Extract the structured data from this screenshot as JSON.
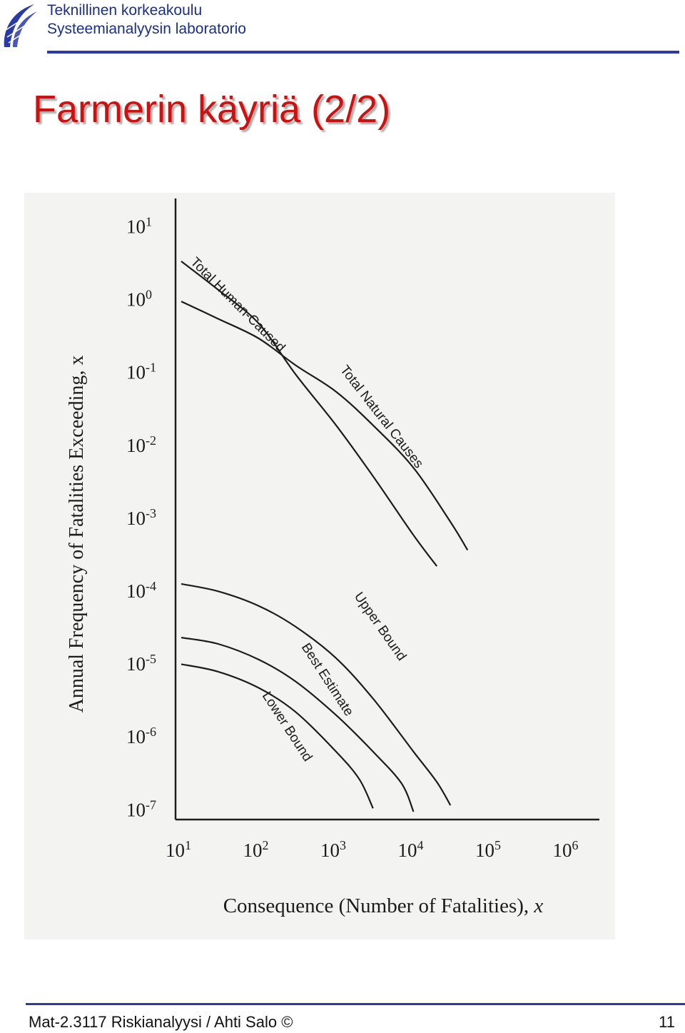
{
  "header": {
    "institution_line1": "Teknillinen korkeakoulu",
    "institution_line2": "Systeemianalyysin laboratorio"
  },
  "slide": {
    "title": "Farmerin käyriä (2/2)"
  },
  "footer": {
    "course": "Mat-2.3117 Riskianalyysi / Ahti Salo ©",
    "page_number": "11"
  },
  "chart_data": {
    "type": "line",
    "xlabel": "Consequence (Number of Fatalities), x",
    "ylabel": "Annual Frequency of Fatalities Exceeding, x",
    "x_scale": "log",
    "y_scale": "log",
    "xlim": [
      10,
      1000000
    ],
    "ylim": [
      1e-07,
      10
    ],
    "x_ticks": [
      {
        "value": 10,
        "base": "10",
        "exp": "1"
      },
      {
        "value": 100,
        "base": "10",
        "exp": "2"
      },
      {
        "value": 1000,
        "base": "10",
        "exp": "3"
      },
      {
        "value": 10000,
        "base": "10",
        "exp": "4"
      },
      {
        "value": 100000,
        "base": "10",
        "exp": "5"
      },
      {
        "value": 1000000,
        "base": "10",
        "exp": "6"
      }
    ],
    "y_ticks": [
      {
        "value": 10,
        "base": "10",
        "exp": "1"
      },
      {
        "value": 1,
        "base": "10",
        "exp": "0"
      },
      {
        "value": 0.1,
        "base": "10",
        "exp": "-1"
      },
      {
        "value": 0.01,
        "base": "10",
        "exp": "-2"
      },
      {
        "value": 0.001,
        "base": "10",
        "exp": "-3"
      },
      {
        "value": 0.0001,
        "base": "10",
        "exp": "-4"
      },
      {
        "value": 1e-05,
        "base": "10",
        "exp": "-5"
      },
      {
        "value": 1e-06,
        "base": "10",
        "exp": "-6"
      },
      {
        "value": 1e-07,
        "base": "10",
        "exp": "-7"
      }
    ],
    "grid": false,
    "legend": "none",
    "series": [
      {
        "name": "Total Human-Caused",
        "x": [
          10,
          30,
          100,
          300,
          1000,
          3000,
          10000,
          20000
        ],
        "y": [
          3.2,
          1.3,
          0.45,
          0.09,
          0.018,
          0.0036,
          0.00056,
          0.00021
        ]
      },
      {
        "name": "Total Natural Causes",
        "x": [
          10,
          30,
          100,
          300,
          1000,
          3000,
          10000,
          30000,
          50000
        ],
        "y": [
          0.9,
          0.52,
          0.28,
          0.12,
          0.052,
          0.018,
          0.0047,
          0.00085,
          0.00035
        ]
      },
      {
        "name": "Upper Bound",
        "x": [
          10,
          30,
          100,
          300,
          1000,
          3000,
          10000,
          20000,
          30000
        ],
        "y": [
          0.00012,
          9.5e-05,
          6e-05,
          3.1e-05,
          1.15e-05,
          3.2e-06,
          6e-07,
          2.3e-07,
          1.1e-07
        ]
      },
      {
        "name": "Best Estimate",
        "x": [
          10,
          30,
          100,
          300,
          1000,
          3000,
          7000,
          10000
        ],
        "y": [
          2.2e-05,
          1.8e-05,
          1.1e-05,
          5.5e-06,
          1.9e-06,
          6e-07,
          2.2e-07,
          9e-08
        ]
      },
      {
        "name": "Lower Bound",
        "x": [
          10,
          30,
          100,
          300,
          1000,
          2000,
          3000
        ],
        "y": [
          9.5e-06,
          7.5e-06,
          4.5e-06,
          2.1e-06,
          6e-07,
          2.5e-07,
          1e-07
        ]
      }
    ]
  }
}
